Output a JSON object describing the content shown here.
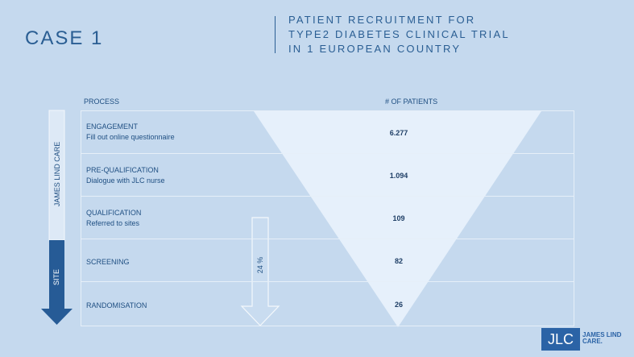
{
  "case_title": "CASE 1",
  "subtitle": {
    "line1": "PATIENT RECRUITMENT FOR",
    "line2": "TYPE2 DIABETES CLINICAL TRIAL",
    "line3": "IN 1 EUROPEAN COUNTRY"
  },
  "headers": {
    "process": "PROCESS",
    "patients": "# OF PATIENTS"
  },
  "side_labels": {
    "james_lind_care": "JAMES LIND CARE",
    "site": "SITE",
    "percent": "24 %"
  },
  "rows": [
    {
      "stage": "ENGAGEMENT",
      "detail": "Fill out online questionnaire",
      "patients": "6.277"
    },
    {
      "stage": "PRE-QUALIFICATION",
      "detail": "Dialogue with JLC nurse",
      "patients": "1.094"
    },
    {
      "stage": "QUALIFICATION",
      "detail": "Referred to sites",
      "patients": "109"
    },
    {
      "stage": "SCREENING",
      "detail": "",
      "patients": "82"
    },
    {
      "stage": "RANDOMISATION",
      "detail": "",
      "patients": "26"
    }
  ],
  "logo": {
    "mark": "JLC",
    "line1": "JAMES LIND",
    "line2": "CARE."
  },
  "colors": {
    "background": "#c5d9ee",
    "funnel": "#e8f1fb",
    "site_arrow": "#265b96",
    "text": "#1f4f82"
  }
}
